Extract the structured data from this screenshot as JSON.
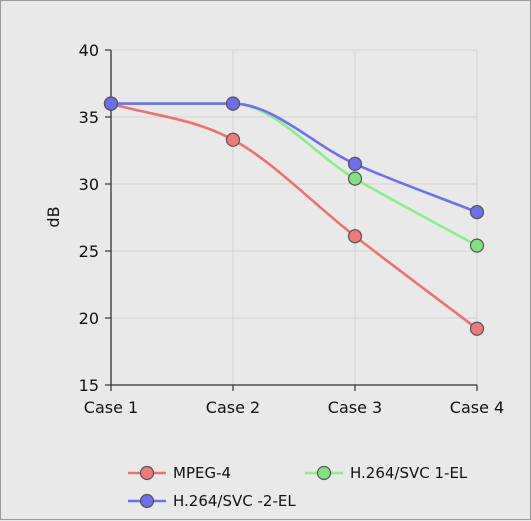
{
  "chart_data": {
    "type": "line",
    "title": "",
    "xlabel": "",
    "ylabel": "dB",
    "categories": [
      "Case 1",
      "Case 2",
      "Case 3",
      "Case 4"
    ],
    "ylim": [
      15,
      40
    ],
    "yticks": [
      15,
      20,
      25,
      30,
      35,
      40
    ],
    "grid": true,
    "legend_position": "bottom",
    "series": [
      {
        "name": "MPEG-4",
        "color": "#f07070",
        "marker_color": "#f07a7a",
        "values": [
          36.0,
          33.3,
          26.1,
          19.2
        ]
      },
      {
        "name": "H.264/SVC 1-EL",
        "color": "#88f088",
        "marker_color": "#7fe37f",
        "values": [
          36.0,
          36.0,
          30.4,
          25.4
        ]
      },
      {
        "name": "H.264/SVC -2-EL",
        "color": "#6f6ff2",
        "marker_color": "#6e6ef0",
        "values": [
          36.0,
          36.0,
          31.5,
          27.9
        ]
      }
    ]
  }
}
